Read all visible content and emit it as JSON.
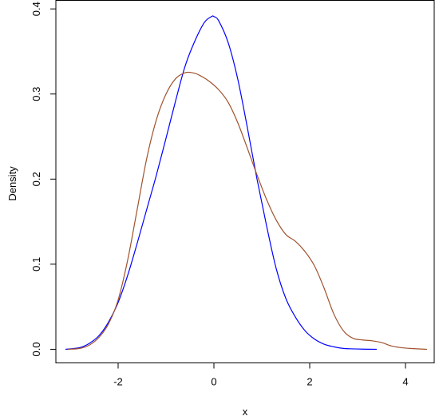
{
  "chart_data": {
    "type": "line",
    "title": "",
    "xlabel": "x",
    "ylabel": "Density",
    "xlim": [
      -3.3,
      4.6
    ],
    "ylim": [
      -0.016,
      0.41
    ],
    "x_ticks": [
      -2,
      0,
      2,
      4
    ],
    "x_tick_labels": [
      "-2",
      "0",
      "2",
      "4"
    ],
    "y_ticks": [
      0.0,
      0.1,
      0.2,
      0.3,
      0.4
    ],
    "y_tick_labels": [
      "0.0",
      "0.1",
      "0.2",
      "0.3",
      "0.4"
    ],
    "grid": false,
    "legend": "none",
    "series": [
      {
        "color": "#0000ff",
        "x": [
          -3.1,
          -2.8,
          -2.6,
          -2.4,
          -2.2,
          -2.0,
          -1.8,
          -1.6,
          -1.4,
          -1.2,
          -1.0,
          -0.8,
          -0.6,
          -0.4,
          -0.2,
          -0.05,
          0.0,
          0.1,
          0.3,
          0.5,
          0.7,
          0.9,
          1.1,
          1.3,
          1.5,
          1.7,
          1.9,
          2.1,
          2.3,
          2.5,
          2.7,
          2.9,
          3.1,
          3.4
        ],
        "y": [
          0.0,
          0.002,
          0.007,
          0.016,
          0.032,
          0.055,
          0.087,
          0.125,
          0.165,
          0.205,
          0.248,
          0.292,
          0.333,
          0.362,
          0.384,
          0.391,
          0.391,
          0.386,
          0.36,
          0.317,
          0.26,
          0.2,
          0.145,
          0.095,
          0.06,
          0.038,
          0.022,
          0.012,
          0.006,
          0.003,
          0.001,
          0.0005,
          0.0002,
          0.0
        ]
      },
      {
        "color": "#a0522d",
        "x": [
          -3.05,
          -2.8,
          -2.6,
          -2.4,
          -2.2,
          -2.0,
          -1.8,
          -1.6,
          -1.4,
          -1.2,
          -1.0,
          -0.8,
          -0.6,
          -0.45,
          -0.3,
          -0.1,
          0.1,
          0.3,
          0.5,
          0.7,
          0.9,
          1.1,
          1.3,
          1.5,
          1.7,
          1.9,
          2.1,
          2.3,
          2.5,
          2.7,
          2.9,
          3.1,
          3.3,
          3.5,
          3.7,
          3.9,
          4.1,
          4.45
        ],
        "y": [
          0.0,
          0.001,
          0.005,
          0.014,
          0.03,
          0.058,
          0.105,
          0.165,
          0.225,
          0.27,
          0.3,
          0.318,
          0.325,
          0.325,
          0.322,
          0.315,
          0.305,
          0.29,
          0.266,
          0.236,
          0.205,
          0.176,
          0.152,
          0.135,
          0.127,
          0.115,
          0.098,
          0.072,
          0.042,
          0.022,
          0.013,
          0.011,
          0.01,
          0.008,
          0.004,
          0.002,
          0.001,
          0.0
        ]
      }
    ]
  }
}
